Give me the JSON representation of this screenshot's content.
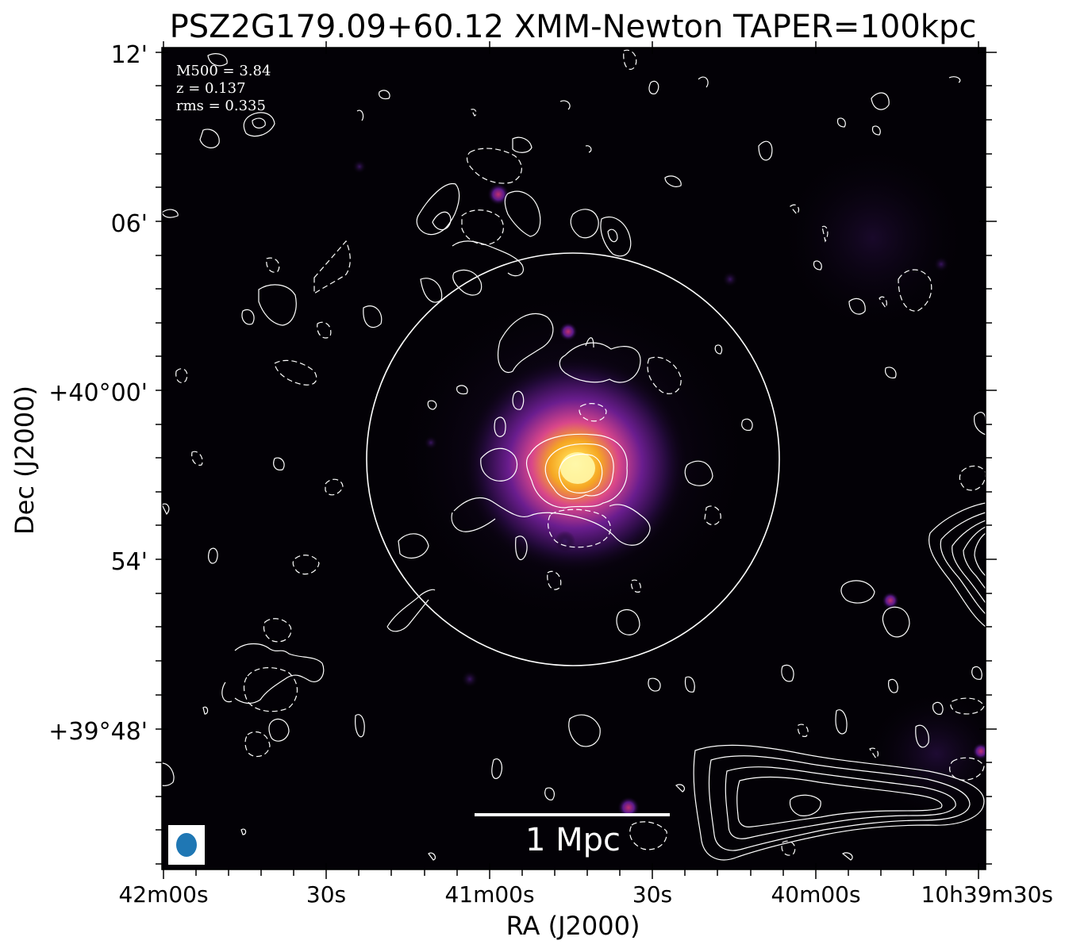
{
  "title": "PSZ2G179.09+60.12 XMM-Newton TAPER=100kpc",
  "xlabel": "RA (J2000)",
  "ylabel": "Dec (J2000)",
  "xticks": [
    "42m00s",
    "30s",
    "41m00s",
    "30s",
    "40m00s",
    "10h39m30s"
  ],
  "yticks": [
    "12'",
    "06'",
    "+40°00'",
    "54'",
    "+39°48'"
  ],
  "info": {
    "m500": "M500 = 3.84",
    "z": "z = 0.137",
    "rms": "rms = 0.335"
  },
  "scalebar": {
    "label": "1 Mpc"
  },
  "beam": {
    "color": "#1f77b4"
  },
  "colors": {
    "background": "#030106",
    "core": "#fff9b0",
    "hot": "#f5a623",
    "warm": "#d9468a",
    "cool": "#5a1a8a",
    "contour": "#ffffff",
    "text_on_image": "#ffffff"
  },
  "colormap": "inferno-like (black-purple-orange-yellow)"
}
